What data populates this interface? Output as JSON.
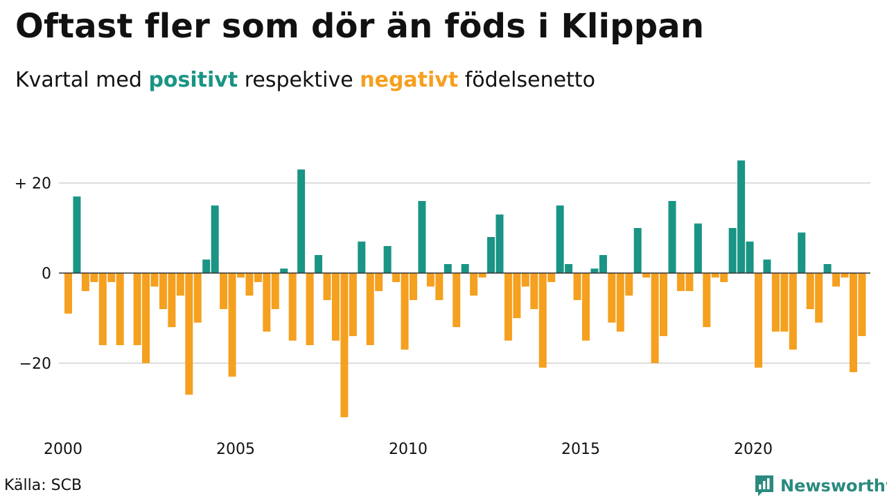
{
  "header": {
    "title": "Oftast fler som dör än föds i Klippan",
    "subtitle_prefix": "Kvartal med",
    "subtitle_positive": "positivt",
    "subtitle_middle": "respektive",
    "subtitle_negative": "negativt",
    "subtitle_suffix": "födelsenetto"
  },
  "footer": {
    "source": "Källa: SCB",
    "brand": "Newsworthy"
  },
  "colors": {
    "positive": "#1a9484",
    "negative": "#f5a01f",
    "grid": "#dddddd",
    "brand": "#2a8a7e"
  },
  "chart_data": {
    "type": "bar",
    "x_start_year": 2000,
    "x_tick_labels": [
      "2000",
      "2005",
      "2010",
      "2015",
      "2020"
    ],
    "y_tick_labels": [
      "+ 20",
      "0",
      "−20"
    ],
    "y_ticks": [
      20,
      0,
      -20
    ],
    "ylim": [
      -33,
      27
    ],
    "grid": true,
    "values": [
      -9,
      17,
      -4,
      -2,
      -16,
      -2,
      -16,
      0,
      -16,
      -20,
      -3,
      -8,
      -12,
      -5,
      -27,
      -11,
      3,
      15,
      -8,
      -23,
      -1,
      -5,
      -2,
      -13,
      -8,
      1,
      -15,
      23,
      -16,
      4,
      -6,
      -15,
      -32,
      -14,
      7,
      -16,
      -4,
      6,
      -2,
      -17,
      -6,
      16,
      -3,
      -6,
      2,
      -12,
      2,
      -5,
      -1,
      8,
      13,
      -15,
      -10,
      -3,
      -8,
      -21,
      -2,
      15,
      2,
      -6,
      -15,
      1,
      4,
      -11,
      -13,
      -5,
      10,
      -1,
      -20,
      -14,
      16,
      -4,
      -4,
      11,
      -12,
      -1,
      -2,
      10,
      25,
      7,
      -21,
      3,
      -13,
      -13,
      -17,
      9,
      -8,
      -11,
      2,
      -3,
      -1,
      -22,
      -14
    ]
  }
}
